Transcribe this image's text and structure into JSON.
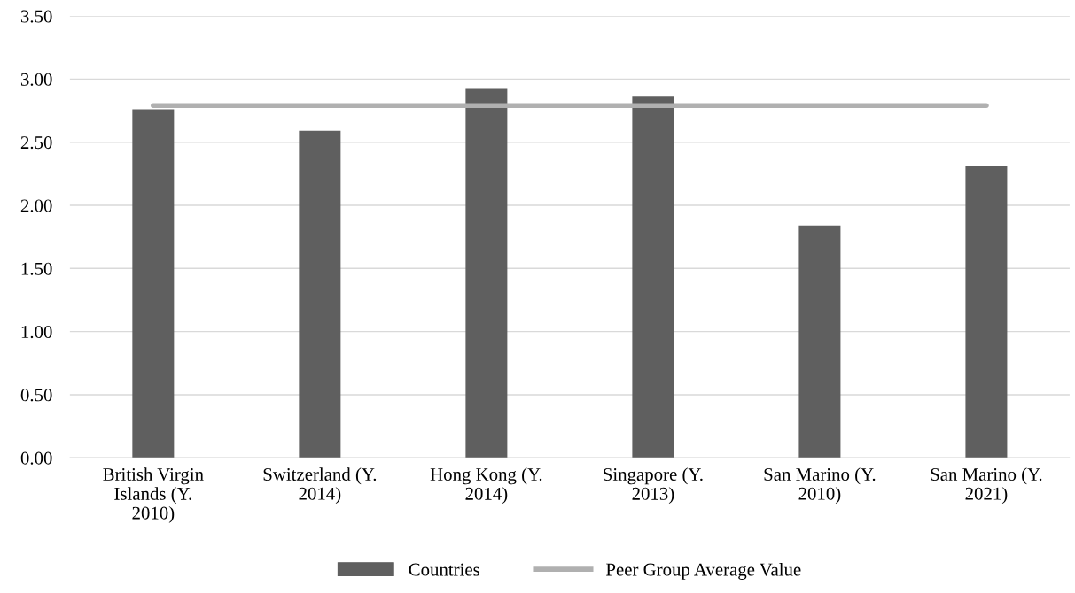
{
  "chart_data": {
    "type": "bar",
    "categories": [
      "British Virgin Islands (Y. 2010)",
      "Switzerland (Y. 2014)",
      "Hong Kong (Y. 2014)",
      "Singapore (Y. 2013)",
      "San Marino (Y. 2010)",
      "San Marino (Y. 2021)"
    ],
    "series": [
      {
        "name": "Countries",
        "color": "#5f5f5f",
        "values": [
          2.76,
          2.59,
          2.93,
          2.86,
          1.84,
          2.31
        ]
      },
      {
        "name": "Peer Group Average Value",
        "type": "line",
        "color": "#b0b0b0",
        "values": [
          2.79,
          2.79,
          2.79,
          2.79,
          2.79,
          2.79
        ]
      }
    ],
    "ylim": [
      0,
      3.5
    ],
    "yticks": [
      {
        "value": 0,
        "label": "0.00"
      },
      {
        "value": 0.5,
        "label": "0.50"
      },
      {
        "value": 1,
        "label": "1.00"
      },
      {
        "value": 1.5,
        "label": "1.50"
      },
      {
        "value": 2,
        "label": "2.00"
      },
      {
        "value": 2.5,
        "label": "2.50"
      },
      {
        "value": 3,
        "label": "3.00"
      },
      {
        "value": 3.5,
        "label": "3.50"
      }
    ],
    "grid": "y",
    "legend": "bottom",
    "marker": "none"
  }
}
